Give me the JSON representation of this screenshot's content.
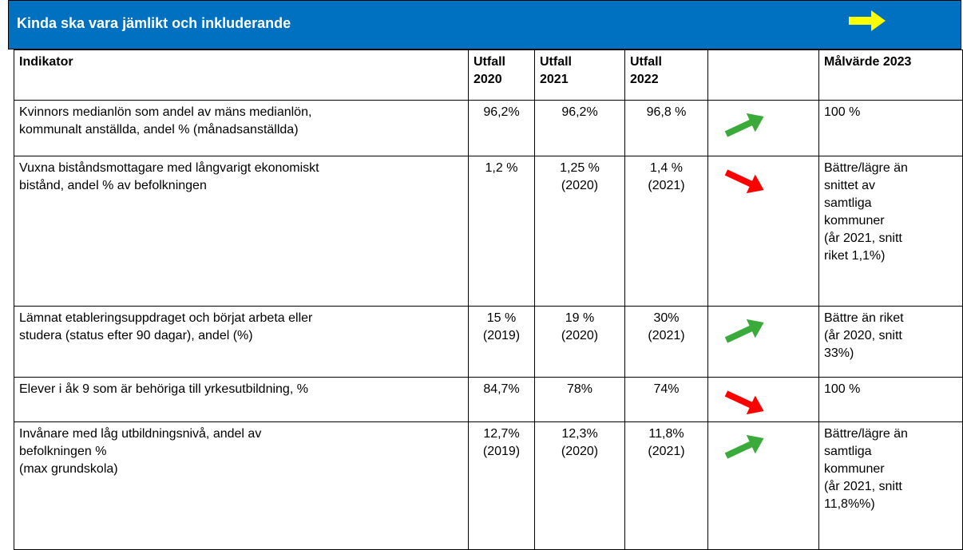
{
  "header": {
    "title": "Kinda ska vara jämlikt och inkluderande"
  },
  "table": {
    "columns": [
      "Indikator",
      "Utfall\n2020",
      "Utfall\n2021",
      "Utfall\n2022",
      "Målvärde 2023"
    ],
    "rows": [
      [
        "Kvinnors medianlön som andel av mäns medianlön,\nkommunalt anställda, andel % (månadsanställda)",
        "96,2%",
        "96,2%",
        "96,8 %",
        "100 %"
      ],
      [
        "Vuxna biståndsmottagare med långvarigt ekonomiskt\nbistånd, andel % av befolkningen",
        "1,2 %",
        "1,25 %\n(2020)",
        "1,4 %\n(2021)",
        "Bättre/lägre än\nsnittet av\nsamtliga\nkommuner\n(år 2021, snitt\nriket 1,1%)"
      ],
      [
        "Lämnat etableringsuppdraget och börjat arbeta eller\nstudera (status efter 90 dagar), andel (%)",
        "15 %\n(2019)",
        "19 %\n(2020)",
        "30%\n(2021)",
        "Bättre än riket\n(år 2020, snitt\n33%)"
      ],
      [
        "Elever i åk 9 som är behöriga till yrkesutbildning, %",
        "84,7%",
        "78%",
        "74%",
        "100 %"
      ],
      [
        "Invånare med låg utbildningsnivå, andel av\nbefolkningen %\n(max grundskola)",
        "12,7%\n(2019)",
        "12,3%\n(2020)",
        "11,8%\n(2021)",
        "Bättre/lägre än\nsamtliga\nkommuner\n(år 2021, snitt\n11,8%%)"
      ]
    ]
  }
}
